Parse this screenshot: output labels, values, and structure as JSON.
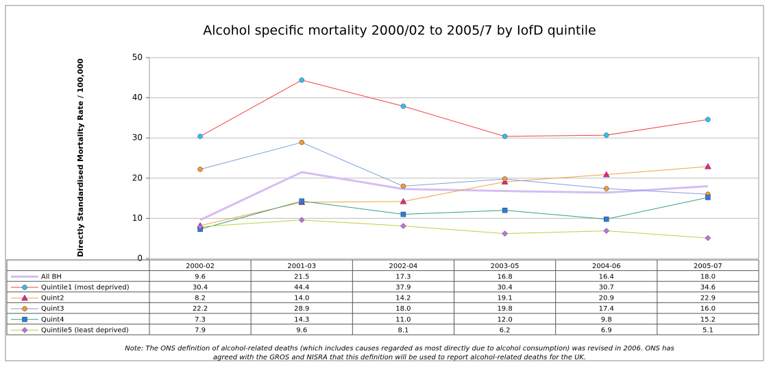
{
  "chart_data": {
    "type": "line",
    "title": "Alcohol specific mortality 2000/02 to 2005/7 by IofD quintile",
    "y_label": "Directly Standardised Mortality Rate / 100,000",
    "categories": [
      "2000-02",
      "2001-03",
      "2002-04",
      "2003-05",
      "2004-06",
      "2005-07"
    ],
    "ylim": [
      0,
      50
    ],
    "yticks": [
      0,
      10,
      20,
      30,
      40,
      50
    ],
    "grid": true,
    "series": [
      {
        "name": "All BH",
        "color": "#d5bdf2",
        "marker": "none",
        "marker_color": "#d5bdf2",
        "values": [
          9.6,
          21.5,
          17.3,
          16.8,
          16.4,
          18.0
        ],
        "value_labels": [
          "9.6",
          "21.5",
          "17.3",
          "16.8",
          "16.4",
          "18.0"
        ]
      },
      {
        "name": "Quintile1 (most deprived)",
        "color": "#f04040",
        "marker": "circle",
        "marker_color": "#30c0f0",
        "values": [
          30.4,
          44.4,
          37.9,
          30.4,
          30.7,
          34.6
        ],
        "value_labels": [
          "30.4",
          "44.4",
          "37.9",
          "30.4",
          "30.7",
          "34.6"
        ]
      },
      {
        "name": "Quint2",
        "color": "#f0a040",
        "marker": "triangle",
        "marker_color": "#f0208a",
        "values": [
          8.2,
          14.0,
          14.2,
          19.1,
          20.9,
          22.9
        ],
        "value_labels": [
          "8.2",
          "14.0",
          "14.2",
          "19.1",
          "20.9",
          "22.9"
        ]
      },
      {
        "name": "Quint3",
        "color": "#7f9ee0",
        "marker": "circle",
        "marker_color": "#f59a30",
        "values": [
          22.2,
          28.9,
          18.0,
          19.8,
          17.4,
          16.0
        ],
        "value_labels": [
          "22.2",
          "28.9",
          "18.0",
          "19.8",
          "17.4",
          "16.0"
        ]
      },
      {
        "name": "Quint4",
        "color": "#30a080",
        "marker": "square",
        "marker_color": "#2a7de0",
        "values": [
          7.3,
          14.3,
          11.0,
          12.0,
          9.8,
          15.2
        ],
        "value_labels": [
          "7.3",
          "14.3",
          "11.0",
          "12.0",
          "9.8",
          "15.2"
        ]
      },
      {
        "name": "Quintile5 (least deprived)",
        "color": "#b8d040",
        "marker": "diamond",
        "marker_color": "#c070e0",
        "values": [
          7.9,
          9.6,
          8.1,
          6.2,
          6.9,
          5.1
        ],
        "value_labels": [
          "7.9",
          "9.6",
          "8.1",
          "6.2",
          "6.9",
          "5.1"
        ]
      }
    ],
    "notes": [
      "Note:  The ONS definition of alcohol-related deaths (which includes causes regarded as most directly due to alcohol consumption) was revised in 2006. ONS has",
      "agreed with the GROS and NISRA that this definition will be used to report alcohol-related deaths for the UK."
    ]
  }
}
